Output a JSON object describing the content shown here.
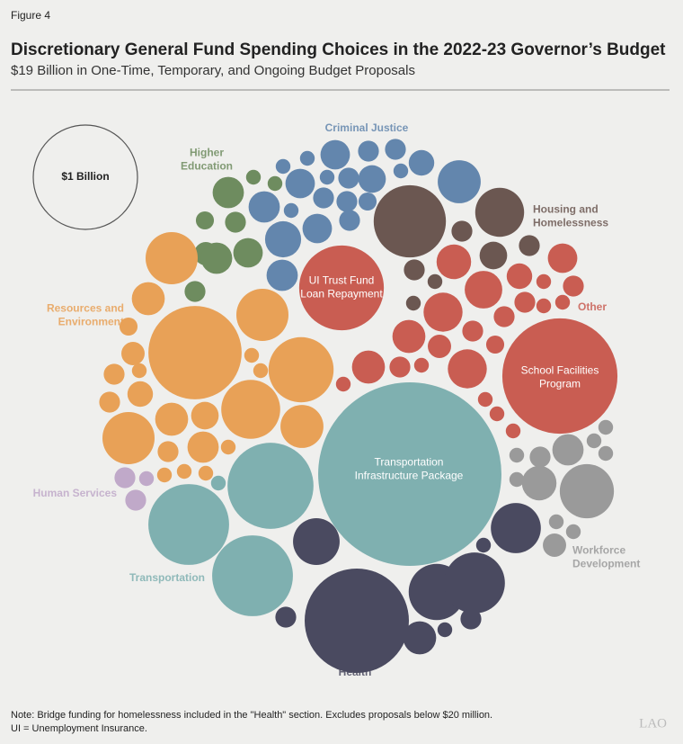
{
  "header": {
    "figure": "Figure 4",
    "title": "Discretionary General Fund Spending Choices in the 2022-23 Governor’s Budget",
    "subtitle": "$19 Billion in One-Time, Temporary, and Ongoing Budget Proposals"
  },
  "chart_data": {
    "type": "bubble",
    "reference": {
      "value": 1,
      "label": "$1 Billion"
    },
    "series": [
      {
        "name": "Criminal Justice",
        "color": "#6386ad",
        "values": [
          0.08,
          0.04,
          0.04,
          0.06,
          0.17,
          0.02,
          0.02,
          0.08,
          0.02,
          0.04,
          0.07,
          0.02,
          0.09,
          0.02,
          0.04,
          0.04,
          0.03,
          0.08,
          0.04,
          0.12,
          0.09
        ]
      },
      {
        "name": "Higher\nEducation",
        "color": "#6e8c5f",
        "values": [
          0.09,
          0.02,
          0.02,
          0.03,
          0.04,
          0.05,
          0.09,
          0.08,
          0.04
        ]
      },
      {
        "name": "Housing and\nHomelessness",
        "color": "#6b5751",
        "values": [
          0.48,
          0.22,
          0.04,
          0.04,
          0.02,
          0.07,
          0.04,
          0.02
        ]
      },
      {
        "name": "Other",
        "color": "#c95d52",
        "values": [
          0.66,
          1.22,
          0.11,
          0.13,
          0.14,
          0.1,
          0.1,
          0.04,
          0.02,
          0.05,
          0.14,
          0.04,
          0.03,
          0.04,
          0.06,
          0.04,
          0.02,
          0.08,
          0.04,
          0.02,
          0.02,
          0.02,
          0.02,
          0.02,
          0.02
        ]
      },
      {
        "name": "Resources and\nEnvironment",
        "color": "#e8a157",
        "values": [
          0.25,
          0.1,
          0.8,
          0.25,
          0.39,
          0.32,
          0.17,
          0.05,
          0.03,
          0.04,
          0.02,
          0.04,
          0.06,
          0.25,
          0.1,
          0.07,
          0.09,
          0.04,
          0.02,
          0.02,
          0.02,
          0.02,
          0.02,
          0.02
        ]
      },
      {
        "name": "Human Services",
        "color": "#c0a9c9",
        "values": [
          0.04,
          0.02,
          0.04
        ]
      },
      {
        "name": "Transportation",
        "color": "#7fb0b0",
        "values": [
          3.09,
          0.68,
          0.6,
          0.6,
          0.02
        ]
      },
      {
        "name": "Health",
        "color": "#4a4a60",
        "values": [
          1.0,
          0.29,
          0.34,
          0.23,
          0.2,
          0.1,
          0.04,
          0.02,
          0.04,
          0.02
        ]
      },
      {
        "name": "Workforce\nDevelopment",
        "color": "#9a9a9a",
        "values": [
          0.27,
          0.09,
          0.11,
          0.04,
          0.02,
          0.02,
          0.02,
          0.02,
          0.02,
          0.05,
          0.02,
          0.02
        ]
      }
    ],
    "annotations": [
      "UI Trust Fund\nLoan Repayment",
      "School Facilities\nProgram",
      "Transportation\nInfrastructure Package"
    ]
  },
  "footer": {
    "note": "Note: Bridge funding for homelessness included in the \"Health\" section. Excludes proposals below $20 million.",
    "abbreviation": "UI = Unemployment Insurance.",
    "logo": "LAO"
  }
}
